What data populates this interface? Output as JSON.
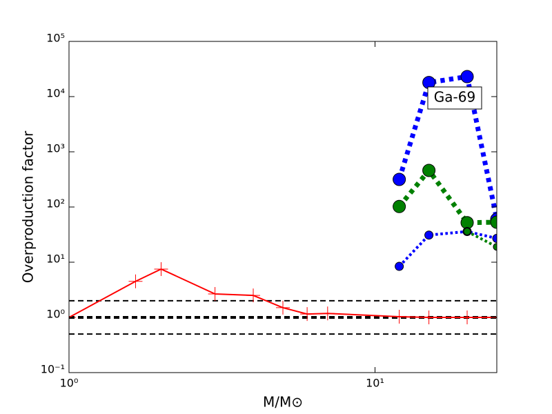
{
  "chart_data": {
    "type": "line",
    "xlabel": "M/M⊙",
    "ylabel": "Overproduction factor",
    "annotation": "Ga-69",
    "xscale": "log",
    "yscale": "log",
    "xlim": [
      1,
      25
    ],
    "ylim": [
      0.1,
      100000
    ],
    "xticks": [
      {
        "value": 1,
        "label": "10⁰"
      },
      {
        "value": 10,
        "label": "10¹"
      }
    ],
    "yticks": [
      {
        "value": 0.1,
        "label": "10⁻¹"
      },
      {
        "value": 1,
        "label": "10⁰"
      },
      {
        "value": 10,
        "label": "10¹"
      },
      {
        "value": 100,
        "label": "10²"
      },
      {
        "value": 1000,
        "label": "10³"
      },
      {
        "value": 10000,
        "label": "10⁴"
      },
      {
        "value": 100000,
        "label": "10⁵"
      }
    ],
    "hlines": [
      {
        "value": 2,
        "color": "#000000",
        "width": 2
      },
      {
        "value": 1,
        "color": "#000000",
        "width": 4
      },
      {
        "value": 0.5,
        "color": "#000000",
        "width": 2
      }
    ],
    "series": [
      {
        "color": "#ff0000",
        "linestyle": "solid",
        "width": 2,
        "marker": "plus",
        "markersize": 10,
        "x": [
          1,
          1.65,
          2,
          3,
          4,
          5,
          6,
          7,
          12,
          15,
          20,
          25
        ],
        "values": [
          1.0,
          4.5,
          7.5,
          2.66,
          2.5,
          1.5,
          1.15,
          1.18,
          1.03,
          1.0,
          1.0,
          1.0
        ]
      },
      {
        "color": "#0000ff",
        "linestyle": "dotted",
        "width": 7,
        "marker": "circle",
        "markersize": 9,
        "x": [
          12,
          15,
          20,
          25
        ],
        "values": [
          316,
          18000,
          23000,
          60
        ]
      },
      {
        "color": "#008000",
        "linestyle": "dotted",
        "width": 7,
        "marker": "circle",
        "markersize": 9,
        "x": [
          12,
          15,
          20,
          25
        ],
        "values": [
          102,
          460,
          52,
          53
        ]
      },
      {
        "color": "#0000ff",
        "linestyle": "dotted",
        "width": 4,
        "marker": "circle",
        "markersize": 6,
        "x": [
          12,
          15,
          20,
          25
        ],
        "values": [
          8.4,
          31,
          36,
          27
        ]
      },
      {
        "color": "#008000",
        "linestyle": "dotted",
        "width": 4,
        "marker": "circle",
        "markersize": 5,
        "x": [
          20,
          25
        ],
        "values": [
          36,
          19
        ]
      }
    ]
  }
}
